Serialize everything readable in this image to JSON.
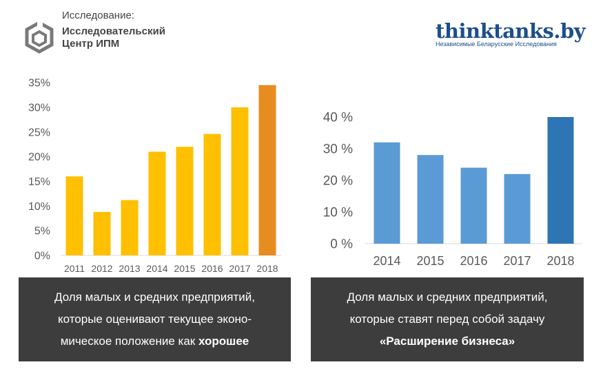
{
  "header": {
    "study_label": "Исследование:",
    "org_line1": "Исследовательский",
    "org_line2": "Центр ИПМ"
  },
  "logo": {
    "site": "thinktanks.by",
    "tagline": "Независимые Беларусские Исследования"
  },
  "colors": {
    "yellow": "#fec000",
    "orange": "#e78c1e",
    "blue": "#5b9bd5",
    "dark_blue": "#2e75b6",
    "caption_bg": "#3d3d3d"
  },
  "chart_data": [
    {
      "type": "bar",
      "categories": [
        "2011",
        "2012",
        "2013",
        "2014",
        "2015",
        "2016",
        "2017",
        "2018"
      ],
      "values": [
        16,
        8.8,
        11.2,
        21,
        22,
        24.6,
        30,
        34.5
      ],
      "highlight_index": 7,
      "yticks": [
        "0%",
        "5%",
        "10%",
        "15%",
        "20%",
        "25%",
        "30%",
        "35%"
      ],
      "ylim": [
        0,
        35
      ],
      "title": "",
      "xlabel": "",
      "ylabel": "",
      "caption_lines": [
        "Доля малых и средних предприятий,",
        "которые оценивают текущее эконо-",
        "мическое положение как"
      ],
      "caption_bold": "хорошее"
    },
    {
      "type": "bar",
      "categories": [
        "2014",
        "2015",
        "2016",
        "2017",
        "2018"
      ],
      "values": [
        32,
        28,
        24,
        22,
        40
      ],
      "highlight_index": 4,
      "yticks": [
        "0 %",
        "10 %",
        "20 %",
        "30 %",
        "40 %"
      ],
      "ylim": [
        0,
        40
      ],
      "title": "",
      "xlabel": "",
      "ylabel": "",
      "caption_lines": [
        "Доля малых и средних предприятий,",
        "которые ставят перед собой задачу"
      ],
      "caption_bold": "«Расширение бизнеса»"
    }
  ]
}
